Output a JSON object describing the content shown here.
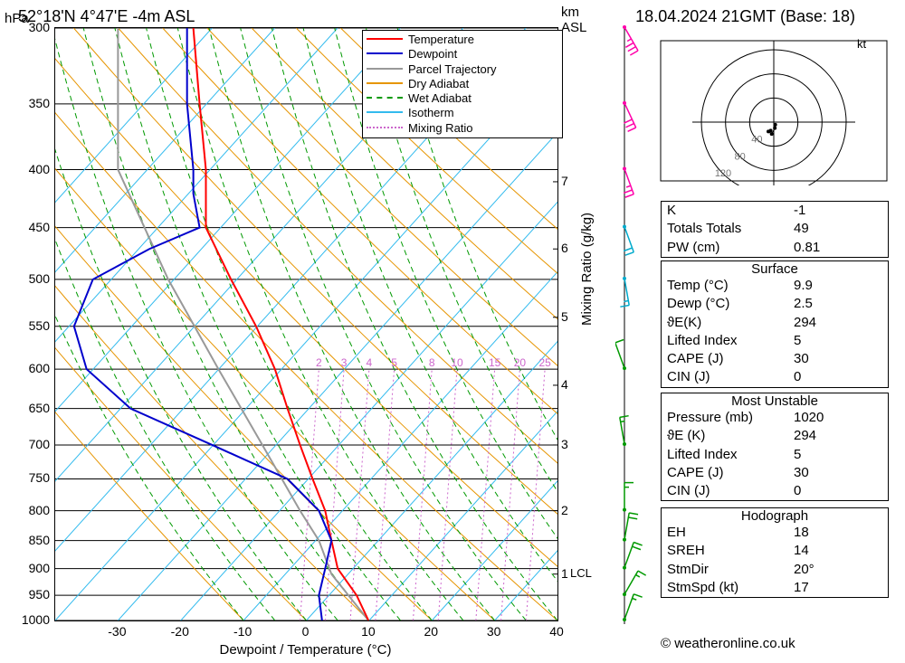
{
  "header": {
    "location": "52°18'N 4°47'E -4m ASL",
    "datetime": "18.04.2024 21GMT (Base: 18)"
  },
  "axes": {
    "ylabel_left": "hPa",
    "ylabel_right_top": "km\nASL",
    "ylabel_right_mid": "Mixing Ratio (g/kg)",
    "xlabel": "Dewpoint / Temperature (°C)",
    "x_min": -40,
    "x_max": 40,
    "x_step": 10,
    "p_ticks": [
      300,
      350,
      400,
      450,
      500,
      550,
      600,
      650,
      700,
      750,
      800,
      850,
      900,
      950,
      1000
    ],
    "km_ticks": [
      1,
      2,
      3,
      4,
      5,
      6,
      7
    ],
    "km_at_p": {
      "1": 910,
      "2": 800,
      "3": 700,
      "4": 620,
      "5": 540,
      "6": 470,
      "7": 410
    },
    "lcl_p": 910,
    "lcl_label": "LCL",
    "mixing_labels": [
      2,
      3,
      4,
      5,
      8,
      10,
      15,
      20,
      25
    ],
    "mixing_x_at_600": [
      2,
      6,
      10,
      14,
      20,
      24,
      30,
      34,
      38
    ]
  },
  "legend": [
    {
      "color": "#ff0000",
      "style": "solid",
      "label": "Temperature"
    },
    {
      "color": "#0000cc",
      "style": "solid",
      "label": "Dewpoint"
    },
    {
      "color": "#999999",
      "style": "solid",
      "label": "Parcel Trajectory"
    },
    {
      "color": "#e69500",
      "style": "solid",
      "label": "Dry Adiabat"
    },
    {
      "color": "#009900",
      "style": "dashed",
      "label": "Wet Adiabat"
    },
    {
      "color": "#33bbee",
      "style": "solid",
      "label": "Isotherm"
    },
    {
      "color": "#cc66cc",
      "style": "dotted",
      "label": "Mixing Ratio"
    }
  ],
  "profiles": {
    "temperature": [
      {
        "p": 1000,
        "t": 9.9
      },
      {
        "p": 950,
        "t": 8
      },
      {
        "p": 900,
        "t": 5
      },
      {
        "p": 850,
        "t": 4
      },
      {
        "p": 800,
        "t": 3
      },
      {
        "p": 750,
        "t": 1
      },
      {
        "p": 700,
        "t": -1
      },
      {
        "p": 650,
        "t": -3
      },
      {
        "p": 600,
        "t": -5
      },
      {
        "p": 550,
        "t": -8
      },
      {
        "p": 500,
        "t": -12
      },
      {
        "p": 450,
        "t": -16
      },
      {
        "p": 400,
        "t": -16
      },
      {
        "p": 350,
        "t": -17
      },
      {
        "p": 300,
        "t": -18
      }
    ],
    "dewpoint": [
      {
        "p": 1000,
        "t": 2.5
      },
      {
        "p": 950,
        "t": 2
      },
      {
        "p": 900,
        "t": 3
      },
      {
        "p": 850,
        "t": 4
      },
      {
        "p": 800,
        "t": 2
      },
      {
        "p": 750,
        "t": -3
      },
      {
        "p": 700,
        "t": -15
      },
      {
        "p": 650,
        "t": -28
      },
      {
        "p": 600,
        "t": -35
      },
      {
        "p": 550,
        "t": -37
      },
      {
        "p": 500,
        "t": -34
      },
      {
        "p": 470,
        "t": -25
      },
      {
        "p": 450,
        "t": -17
      },
      {
        "p": 420,
        "t": -18
      },
      {
        "p": 400,
        "t": -18
      },
      {
        "p": 350,
        "t": -19
      },
      {
        "p": 300,
        "t": -19
      }
    ],
    "parcel": [
      {
        "p": 1000,
        "t": 9.9
      },
      {
        "p": 910,
        "t": 4
      },
      {
        "p": 850,
        "t": 2
      },
      {
        "p": 800,
        "t": -1
      },
      {
        "p": 700,
        "t": -7
      },
      {
        "p": 600,
        "t": -14
      },
      {
        "p": 500,
        "t": -22
      },
      {
        "p": 400,
        "t": -30
      },
      {
        "p": 300,
        "t": -30
      }
    ]
  },
  "colors": {
    "temperature": "#ff0000",
    "dewpoint": "#0000cc",
    "parcel": "#999999",
    "dry_adiabat": "#e69500",
    "wet_adiabat": "#009900",
    "isotherm": "#33bbee",
    "mixing": "#cc66cc",
    "grid": "#000000",
    "hodo": "#000000",
    "wind_barb": "#009900",
    "wind_special": "#ff00aa"
  },
  "hodograph": {
    "kt_label": "kt",
    "radial_labels": [
      "40",
      "80",
      "120"
    ],
    "points": [
      {
        "r": 15,
        "ang": 200
      },
      {
        "r": 18,
        "ang": 210
      },
      {
        "r": 20,
        "ang": 190
      },
      {
        "r": 10,
        "ang": 170
      },
      {
        "r": 5,
        "ang": 150
      }
    ]
  },
  "wind_barbs": [
    {
      "p": 1000,
      "color": "green",
      "spd": 15,
      "dir": 200
    },
    {
      "p": 950,
      "color": "green",
      "spd": 15,
      "dir": 210
    },
    {
      "p": 900,
      "color": "green",
      "spd": 20,
      "dir": 200
    },
    {
      "p": 850,
      "color": "green",
      "spd": 20,
      "dir": 190
    },
    {
      "p": 800,
      "color": "green",
      "spd": 15,
      "dir": 180
    },
    {
      "p": 700,
      "color": "green",
      "spd": 15,
      "dir": 170
    },
    {
      "p": 600,
      "color": "green",
      "spd": 10,
      "dir": 160
    },
    {
      "p": 500,
      "color": "cyan",
      "spd": 15,
      "dir": 350
    },
    {
      "p": 450,
      "color": "cyan",
      "spd": 20,
      "dir": 340
    },
    {
      "p": 400,
      "color": "pink",
      "spd": 25,
      "dir": 340
    },
    {
      "p": 350,
      "color": "pink",
      "spd": 30,
      "dir": 335
    },
    {
      "p": 300,
      "color": "pink",
      "spd": 35,
      "dir": 330
    }
  ],
  "tables": {
    "main": [
      {
        "label": "K",
        "val": "-1"
      },
      {
        "label": "Totals Totals",
        "val": "49"
      },
      {
        "label": "PW (cm)",
        "val": "0.81"
      }
    ],
    "surface_head": "Surface",
    "surface": [
      {
        "label": "Temp (°C)",
        "val": "9.9"
      },
      {
        "label": "Dewp (°C)",
        "val": "2.5"
      },
      {
        "label": "ϑE(K)",
        "val": "294"
      },
      {
        "label": "Lifted Index",
        "val": "5"
      },
      {
        "label": "CAPE (J)",
        "val": "30"
      },
      {
        "label": "CIN (J)",
        "val": "0"
      }
    ],
    "unstable_head": "Most Unstable",
    "unstable": [
      {
        "label": "Pressure (mb)",
        "val": "1020"
      },
      {
        "label": "ϑE (K)",
        "val": "294"
      },
      {
        "label": "Lifted Index",
        "val": "5"
      },
      {
        "label": "CAPE (J)",
        "val": "30"
      },
      {
        "label": "CIN (J)",
        "val": "0"
      }
    ],
    "hodo_head": "Hodograph",
    "hodo": [
      {
        "label": "EH",
        "val": "18"
      },
      {
        "label": "SREH",
        "val": "14"
      },
      {
        "label": "StmDir",
        "val": "20°"
      },
      {
        "label": "StmSpd (kt)",
        "val": "17"
      }
    ]
  },
  "copyright": "© weatheronline.co.uk"
}
